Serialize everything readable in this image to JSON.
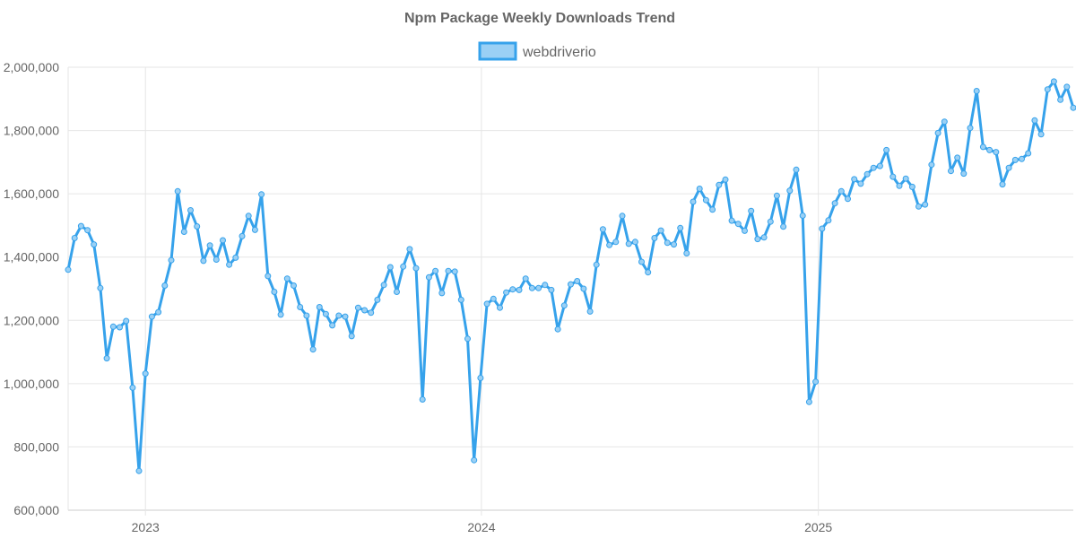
{
  "chart_data": {
    "type": "line",
    "title": "Npm Package Weekly Downloads Trend",
    "xlabel": "",
    "ylabel": "",
    "ylim": [
      600000,
      2000000
    ],
    "xlim": [
      "2022-10-09",
      "2025-10-05"
    ],
    "y_ticks": [
      600000,
      800000,
      1000000,
      1200000,
      1400000,
      1600000,
      1800000,
      2000000
    ],
    "y_tick_labels": [
      "600,000",
      "800,000",
      "1,000,000",
      "1,200,000",
      "1,400,000",
      "1,600,000",
      "1,800,000",
      "2,000,000"
    ],
    "x_ticks": [
      "2023-01-01",
      "2024-01-01",
      "2025-01-01"
    ],
    "x_tick_labels": [
      "2023",
      "2024",
      "2025"
    ],
    "grid": true,
    "legend_position": "top-center",
    "colors": {
      "line": "#36a2eb",
      "fill": "#9ad0f5",
      "grid": "#e6e6e6",
      "text": "#666666"
    },
    "series": [
      {
        "name": "webdriverio",
        "x": [
          "2022-10-09",
          "2022-10-16",
          "2022-10-23",
          "2022-10-30",
          "2022-11-06",
          "2022-11-13",
          "2022-11-20",
          "2022-11-27",
          "2022-12-04",
          "2022-12-11",
          "2022-12-18",
          "2022-12-25",
          "2023-01-01",
          "2023-01-08",
          "2023-01-15",
          "2023-01-22",
          "2023-01-29",
          "2023-02-05",
          "2023-02-12",
          "2023-02-19",
          "2023-02-26",
          "2023-03-05",
          "2023-03-12",
          "2023-03-19",
          "2023-03-26",
          "2023-04-02",
          "2023-04-09",
          "2023-04-16",
          "2023-04-23",
          "2023-04-30",
          "2023-05-07",
          "2023-05-14",
          "2023-05-21",
          "2023-05-28",
          "2023-06-04",
          "2023-06-11",
          "2023-06-18",
          "2023-06-25",
          "2023-07-02",
          "2023-07-09",
          "2023-07-16",
          "2023-07-23",
          "2023-07-30",
          "2023-08-06",
          "2023-08-13",
          "2023-08-20",
          "2023-08-27",
          "2023-09-03",
          "2023-09-10",
          "2023-09-17",
          "2023-09-24",
          "2023-10-01",
          "2023-10-08",
          "2023-10-15",
          "2023-10-22",
          "2023-10-29",
          "2023-11-05",
          "2023-11-12",
          "2023-11-19",
          "2023-11-26",
          "2023-12-03",
          "2023-12-10",
          "2023-12-17",
          "2023-12-24",
          "2023-12-31",
          "2024-01-07",
          "2024-01-14",
          "2024-01-21",
          "2024-01-28",
          "2024-02-04",
          "2024-02-11",
          "2024-02-18",
          "2024-02-25",
          "2024-03-03",
          "2024-03-10",
          "2024-03-17",
          "2024-03-24",
          "2024-03-31",
          "2024-04-07",
          "2024-04-14",
          "2024-04-21",
          "2024-04-28",
          "2024-05-05",
          "2024-05-12",
          "2024-05-19",
          "2024-05-26",
          "2024-06-02",
          "2024-06-09",
          "2024-06-16",
          "2024-06-23",
          "2024-06-30",
          "2024-07-07",
          "2024-07-14",
          "2024-07-21",
          "2024-07-28",
          "2024-08-04",
          "2024-08-11",
          "2024-08-18",
          "2024-08-25",
          "2024-09-01",
          "2024-09-08",
          "2024-09-15",
          "2024-09-22",
          "2024-09-29",
          "2024-10-06",
          "2024-10-13",
          "2024-10-20",
          "2024-10-27",
          "2024-11-03",
          "2024-11-10",
          "2024-11-17",
          "2024-11-24",
          "2024-12-01",
          "2024-12-08",
          "2024-12-15",
          "2024-12-22",
          "2024-12-29",
          "2025-01-05",
          "2025-01-12",
          "2025-01-19",
          "2025-01-26",
          "2025-02-02",
          "2025-02-09",
          "2025-02-16",
          "2025-02-23",
          "2025-03-02",
          "2025-03-09",
          "2025-03-16",
          "2025-03-23",
          "2025-03-30",
          "2025-04-06",
          "2025-04-13",
          "2025-04-20",
          "2025-04-27",
          "2025-05-04",
          "2025-05-11",
          "2025-05-18",
          "2025-05-25",
          "2025-06-01",
          "2025-06-08",
          "2025-06-15",
          "2025-06-22",
          "2025-06-29",
          "2025-07-06",
          "2025-07-13",
          "2025-07-20",
          "2025-07-27",
          "2025-08-03",
          "2025-08-10",
          "2025-08-17",
          "2025-08-24",
          "2025-08-31",
          "2025-09-07",
          "2025-09-14",
          "2025-09-21",
          "2025-09-28",
          "2025-10-05"
        ],
        "values": [
          1360000,
          1460000,
          1498000,
          1485000,
          1440000,
          1302000,
          1080000,
          1180000,
          1178000,
          1198000,
          987000,
          724000,
          1032000,
          1212000,
          1226000,
          1310000,
          1390000,
          1608000,
          1480000,
          1548000,
          1497000,
          1388000,
          1437000,
          1392000,
          1453000,
          1376000,
          1398000,
          1466000,
          1530000,
          1486000,
          1598000,
          1340000,
          1290000,
          1218000,
          1332000,
          1310000,
          1242000,
          1215000,
          1108000,
          1242000,
          1220000,
          1184000,
          1215000,
          1212000,
          1150000,
          1240000,
          1232000,
          1224000,
          1265000,
          1312000,
          1368000,
          1290000,
          1370000,
          1425000,
          1365000,
          950000,
          1336000,
          1356000,
          1286000,
          1356000,
          1354000,
          1265000,
          1142000,
          758000,
          1018000,
          1252000,
          1268000,
          1240000,
          1288000,
          1298000,
          1296000,
          1332000,
          1302000,
          1302000,
          1312000,
          1296000,
          1172000,
          1247000,
          1314000,
          1324000,
          1300000,
          1228000,
          1376000,
          1488000,
          1438000,
          1448000,
          1530000,
          1442000,
          1448000,
          1385000,
          1352000,
          1460000,
          1484000,
          1445000,
          1440000,
          1492000,
          1412000,
          1575000,
          1616000,
          1580000,
          1550000,
          1628000,
          1645000,
          1515000,
          1505000,
          1483000,
          1546000,
          1457000,
          1462000,
          1512000,
          1594000,
          1496000,
          1610000,
          1676000,
          1531000,
          942000,
          1006000,
          1490000,
          1516000,
          1570000,
          1608000,
          1584000,
          1646000,
          1632000,
          1662000,
          1682000,
          1688000,
          1738000,
          1654000,
          1625000,
          1648000,
          1622000,
          1560000,
          1566000,
          1692000,
          1792000,
          1828000,
          1672000,
          1714000,
          1664000,
          1808000,
          1925000,
          1748000,
          1738000,
          1732000,
          1630000,
          1682000,
          1707000,
          1710000,
          1728000,
          1832000,
          1788000,
          1930000,
          1955000,
          1897000,
          1938000,
          1872000
        ]
      }
    ]
  }
}
